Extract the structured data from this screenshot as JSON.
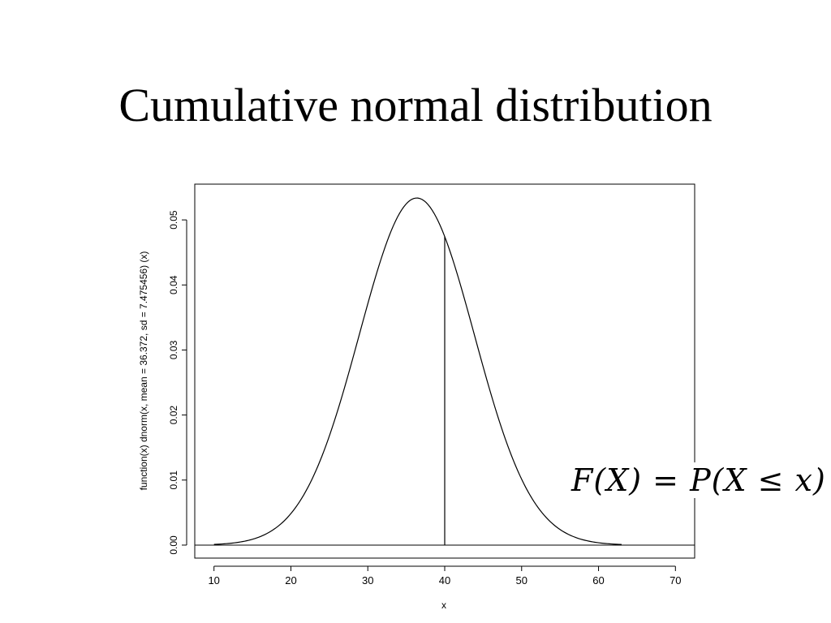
{
  "slide": {
    "title": "Cumulative normal distribution",
    "formula": "F(X) = P(X ≤ x)"
  },
  "chart_data": {
    "type": "line",
    "title": "",
    "xlabel": "x",
    "ylabel": "function(x) dnorm(x, mean = 36.372, sd = 7.475456) (x)",
    "distribution": {
      "name": "normal",
      "mean": 36.372,
      "sd": 7.475456
    },
    "x_range": [
      10,
      63
    ],
    "xlim": [
      7.5,
      72.5
    ],
    "ylim": [
      -0.002,
      0.0555
    ],
    "xticks": [
      10,
      20,
      30,
      40,
      50,
      60,
      70
    ],
    "yticks": [
      0.0,
      0.01,
      0.02,
      0.03,
      0.04,
      0.05
    ],
    "ytick_labels": [
      "0.00",
      "0.01",
      "0.02",
      "0.03",
      "0.04",
      "0.05"
    ],
    "baseline_y": 0,
    "vertical_marker_x": 40,
    "grid": false,
    "colors": {
      "line": "#000000",
      "background": "#ffffff"
    }
  }
}
